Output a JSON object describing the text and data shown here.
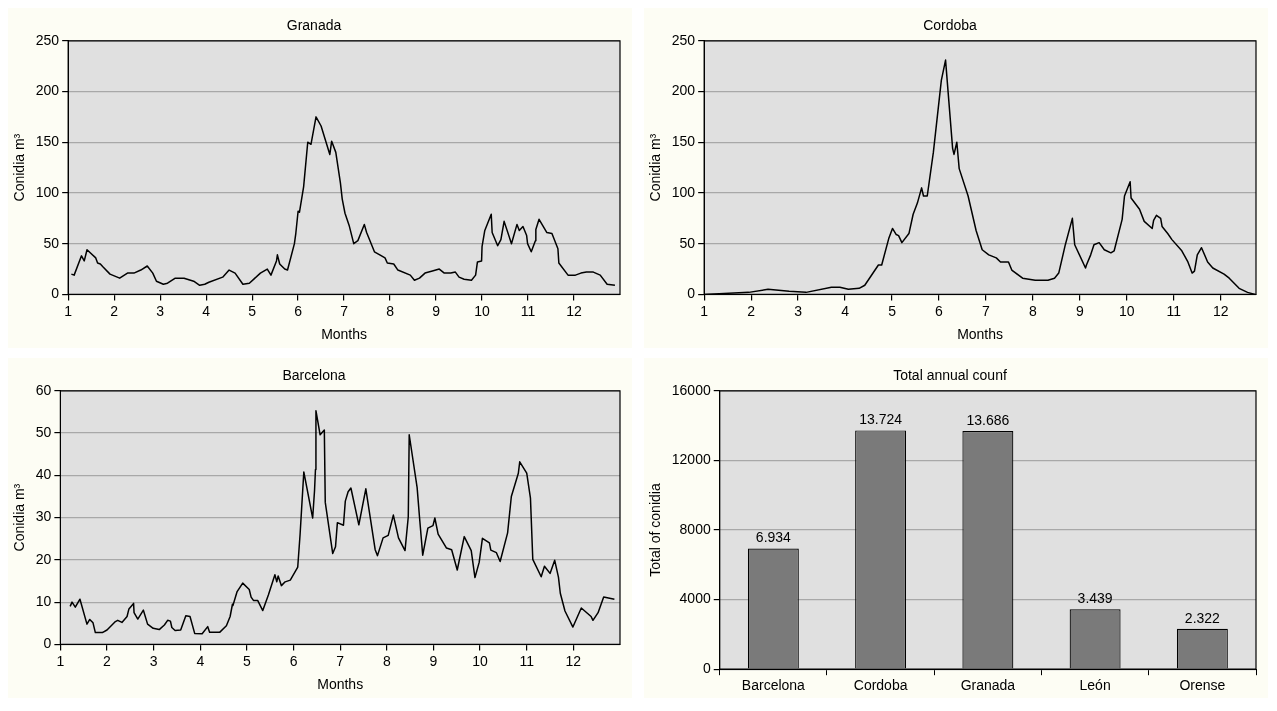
{
  "chart_data": [
    {
      "type": "line",
      "title": "Granada",
      "xlabel": "Months",
      "ylabel": "Conidia m³",
      "xlim": [
        1,
        13
      ],
      "xticks": [
        1,
        2,
        3,
        4,
        5,
        6,
        7,
        8,
        9,
        10,
        11,
        12
      ],
      "ylim": [
        0,
        250
      ],
      "yticks": [
        0,
        50,
        100,
        150,
        200,
        250
      ],
      "grid": "y",
      "legend": false,
      "marker": "none",
      "color": "#000000",
      "x": [
        1.07,
        1.13,
        1.29,
        1.35,
        1.41,
        1.6,
        1.64,
        1.7,
        1.76,
        1.91,
        2.12,
        2.29,
        2.43,
        2.58,
        2.72,
        2.84,
        2.92,
        3.07,
        3.16,
        3.33,
        3.52,
        3.73,
        3.86,
        3.97,
        4.06,
        4.36,
        4.5,
        4.63,
        4.8,
        4.94,
        5.18,
        5.33,
        5.41,
        5.53,
        5.55,
        5.6,
        5.71,
        5.77,
        5.92,
        5.95,
        6.0,
        6.03,
        6.12,
        6.21,
        6.28,
        6.39,
        6.5,
        6.69,
        6.73,
        6.82,
        6.92,
        6.96,
        7.02,
        7.11,
        7.21,
        7.3,
        7.44,
        7.49,
        7.66,
        7.89,
        7.94,
        8.08,
        8.17,
        8.44,
        8.53,
        8.64,
        8.76,
        8.92,
        9.07,
        9.18,
        9.32,
        9.42,
        9.5,
        9.61,
        9.77,
        9.86,
        9.9,
        9.99,
        10.0,
        10.06,
        10.2,
        10.22,
        10.34,
        10.41,
        10.48,
        10.64,
        10.76,
        10.81,
        10.89,
        10.97,
        10.99,
        11.07,
        11.16,
        11.17,
        11.24,
        11.41,
        11.52,
        11.65,
        11.67,
        11.87,
        12.03,
        12.15,
        12.27,
        12.42,
        12.57,
        12.72,
        12.89
      ],
      "values": [
        20,
        19,
        38,
        33,
        44,
        36,
        31,
        30,
        27,
        20,
        16,
        21,
        21,
        24,
        28,
        21,
        13,
        10,
        11,
        16,
        16,
        13,
        9,
        10,
        12,
        17,
        24,
        21,
        10,
        11,
        21,
        25,
        19,
        33,
        39,
        30,
        25,
        24,
        50,
        60,
        82,
        81,
        106,
        150,
        148,
        175,
        166,
        138,
        151,
        140,
        110,
        94,
        80,
        68,
        50,
        53,
        69,
        61,
        42,
        36,
        31,
        30,
        24,
        19,
        14,
        16,
        21,
        23,
        25,
        21,
        21,
        22,
        17,
        15,
        14,
        19,
        32,
        33,
        47,
        63,
        79,
        61,
        48,
        54,
        72,
        50,
        69,
        63,
        67,
        58,
        50,
        42,
        53,
        64,
        74,
        61,
        60,
        45,
        31,
        19,
        19,
        21,
        22,
        22,
        19,
        10,
        9
      ]
    },
    {
      "type": "line",
      "title": "Cordoba",
      "xlabel": "Months",
      "ylabel": "Conidia m³",
      "xlim": [
        1,
        12.75
      ],
      "xticks": [
        1,
        2,
        3,
        4,
        5,
        6,
        7,
        8,
        9,
        10,
        11,
        12
      ],
      "ylim": [
        0,
        250
      ],
      "yticks": [
        0,
        50,
        100,
        150,
        200,
        250
      ],
      "grid": "y",
      "legend": false,
      "marker": "none",
      "color": "#000000",
      "x": [
        1,
        1.95,
        2.36,
        2.81,
        3.17,
        3.71,
        3.89,
        4.07,
        4.3,
        4.42,
        4.71,
        4.78,
        4.93,
        5.01,
        5.09,
        5.14,
        5.21,
        5.36,
        5.45,
        5.54,
        5.63,
        5.67,
        5.75,
        5.88,
        6.05,
        6.14,
        6.29,
        6.32,
        6.38,
        6.43,
        6.62,
        6.79,
        6.92,
        7.06,
        7.22,
        7.31,
        7.48,
        7.55,
        7.78,
        8.05,
        8.32,
        8.46,
        8.55,
        8.69,
        8.84,
        8.89,
        9.12,
        9.14,
        9.23,
        9.3,
        9.41,
        9.52,
        9.66,
        9.73,
        9.9,
        9.95,
        10.07,
        10.09,
        10.27,
        10.37,
        10.54,
        10.57,
        10.63,
        10.72,
        10.75,
        10.87,
        10.96,
        11.17,
        11.3,
        11.39,
        11.44,
        11.5,
        11.59,
        11.72,
        11.83,
        12.07,
        12.18,
        12.39,
        12.57,
        12.73
      ],
      "values": [
        0,
        2,
        5,
        3,
        2,
        7,
        7,
        5,
        6,
        9,
        29,
        29,
        55,
        65,
        59,
        58,
        51,
        60,
        79,
        90,
        105,
        97,
        97,
        140,
        211,
        231,
        144,
        138,
        150,
        124,
        97,
        63,
        44,
        39,
        36,
        32,
        32,
        24,
        16,
        14,
        14,
        16,
        21,
        49,
        75,
        49,
        26,
        29,
        39,
        49,
        51,
        44,
        41,
        43,
        74,
        97,
        111,
        95,
        84,
        72,
        65,
        73,
        78,
        75,
        67,
        60,
        54,
        43,
        32,
        21,
        23,
        39,
        46,
        32,
        26,
        20,
        16,
        6,
        2,
        0
      ]
    },
    {
      "type": "line",
      "title": "Barcelona",
      "xlabel": "Months",
      "ylabel": "Conidia m³",
      "xlim": [
        1,
        13
      ],
      "xticks": [
        1,
        2,
        3,
        4,
        5,
        6,
        7,
        8,
        9,
        10,
        11,
        12
      ],
      "ylim": [
        0,
        60
      ],
      "yticks": [
        0,
        10,
        20,
        30,
        40,
        50,
        60
      ],
      "grid": "y",
      "legend": false,
      "marker": "none",
      "color": "#000000",
      "x": [
        1.21,
        1.25,
        1.32,
        1.42,
        1.57,
        1.63,
        1.7,
        1.75,
        1.9,
        2.0,
        2.18,
        2.23,
        2.32,
        2.43,
        2.47,
        2.57,
        2.58,
        2.66,
        2.78,
        2.87,
        2.99,
        3.12,
        3.23,
        3.3,
        3.36,
        3.39,
        3.46,
        3.58,
        3.69,
        3.78,
        3.88,
        4.04,
        4.16,
        4.2,
        4.42,
        4.56,
        4.64,
        4.69,
        4.7,
        4.79,
        4.91,
        5.05,
        5.09,
        5.14,
        5.23,
        5.34,
        5.46,
        5.6,
        5.64,
        5.67,
        5.74,
        5.82,
        5.93,
        6.09,
        6.14,
        6.22,
        6.41,
        6.45,
        6.47,
        6.48,
        6.57,
        6.66,
        6.68,
        6.84,
        6.9,
        6.94,
        7.07,
        7.11,
        7.17,
        7.23,
        7.4,
        7.55,
        7.75,
        7.8,
        7.92,
        8.03,
        8.14,
        8.25,
        8.39,
        8.46,
        8.48,
        8.65,
        8.7,
        8.77,
        8.88,
        8.99,
        9.03,
        9.1,
        9.28,
        9.39,
        9.51,
        9.66,
        9.81,
        9.89,
        9.98,
        10.05,
        10.2,
        10.23,
        10.35,
        10.43,
        10.59,
        10.67,
        10.82,
        10.85,
        11.0,
        11.08,
        11.13,
        11.31,
        11.38,
        11.5,
        11.6,
        11.68,
        11.72,
        11.82,
        11.99,
        12.17,
        12.38,
        12.42,
        12.53,
        12.65,
        12.88
      ],
      "values": [
        9,
        10,
        8.8,
        10.7,
        4.8,
        5.9,
        5.1,
        2.8,
        2.8,
        3.4,
        5.4,
        5.7,
        5.2,
        6.6,
        8.4,
        9.7,
        7.5,
        6,
        8.1,
        4.8,
        3.8,
        3.5,
        4.6,
        5.7,
        5.5,
        4,
        3.3,
        3.4,
        6.8,
        6.6,
        2.6,
        2.5,
        4.2,
        2.9,
        2.9,
        4.4,
        6.6,
        9.5,
        9.2,
        12.5,
        14.5,
        13,
        11.2,
        10.4,
        10.4,
        8,
        11.7,
        16.5,
        14.8,
        16.2,
        13.9,
        14.8,
        15.2,
        18.3,
        26,
        40.8,
        29.9,
        36.4,
        41.4,
        55.3,
        49.6,
        50.7,
        33.6,
        21.5,
        23.1,
        28.8,
        28.2,
        33.9,
        36.1,
        37,
        28.3,
        36.8,
        22.4,
        21,
        25.2,
        25.8,
        30.6,
        25.2,
        22.2,
        30.2,
        49.6,
        37.1,
        30.2,
        21.1,
        27.5,
        28.1,
        29.9,
        26.1,
        22.8,
        22.4,
        17.6,
        25.5,
        22.2,
        15.8,
        19.4,
        25.1,
        24,
        22.3,
        21.7,
        19.6,
        26.4,
        35,
        40.5,
        43.2,
        40.5,
        34.6,
        20.1,
        16,
        18.5,
        16.8,
        19.9,
        15.9,
        12.1,
        7.9,
        4.1,
        8.6,
        6.6,
        5.7,
        7.5,
        11.2,
        10.7
      ]
    },
    {
      "type": "bar",
      "title": "Total annual counf",
      "ylabel": "Total of conidia",
      "categories": [
        "Barcelona",
        "Cordoba",
        "Granada",
        "León",
        "Orense"
      ],
      "values": [
        6934,
        13724,
        13686,
        3439,
        2322
      ],
      "value_labels": [
        "6.934",
        "13.724",
        "13.686",
        "3.439",
        "2.322"
      ],
      "color": "#7a7a7a",
      "ylim": [
        0,
        16000
      ],
      "yticks": [
        0,
        4000,
        8000,
        12000,
        16000
      ],
      "grid": "y",
      "legend": false
    }
  ]
}
